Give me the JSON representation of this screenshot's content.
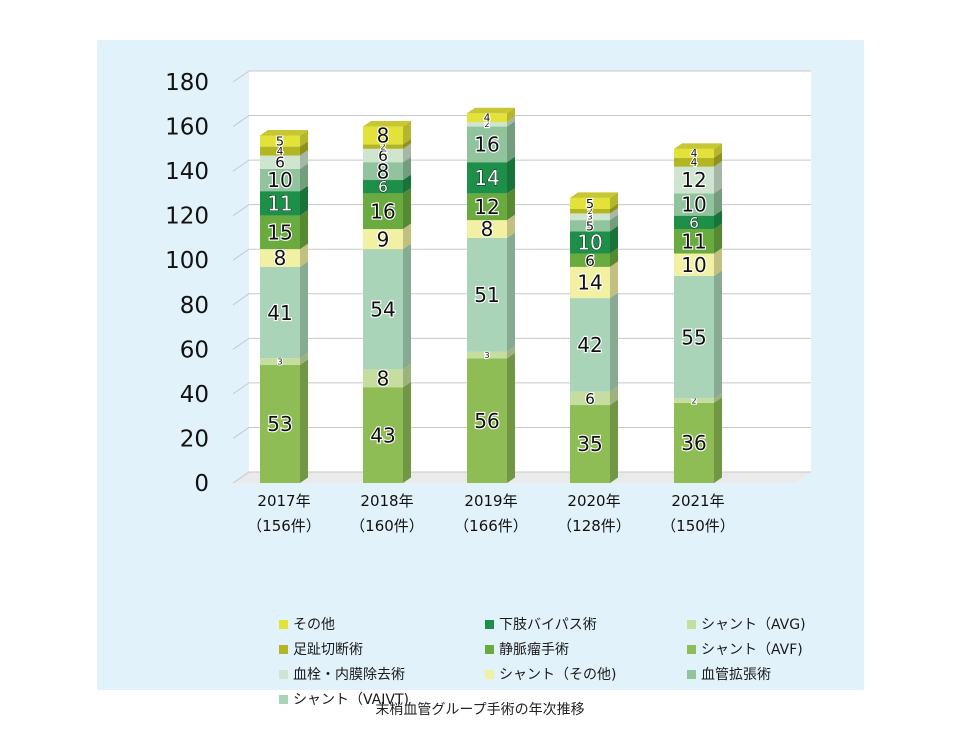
{
  "caption": "末梢血管グループ手術の年次推移",
  "chart_data": {
    "type": "bar",
    "stacked": true,
    "title": "",
    "xlabel": "",
    "ylabel": "",
    "ylim": [
      0,
      180
    ],
    "y_ticks": [
      0,
      20,
      40,
      60,
      80,
      100,
      120,
      140,
      160,
      180
    ],
    "grid": true,
    "legend_position": "bottom",
    "categories": [
      {
        "year": "2017年",
        "count": "（156件）"
      },
      {
        "year": "2018年",
        "count": "（160件）"
      },
      {
        "year": "2019年",
        "count": "（166件）"
      },
      {
        "year": "2020年",
        "count": "（128件）"
      },
      {
        "year": "2021年",
        "count": "（150件）"
      }
    ],
    "series": [
      {
        "name": "シャント（AVF)",
        "color": "#8fbd55",
        "values": [
          53,
          43,
          56,
          35,
          36
        ]
      },
      {
        "name": "シャント（AVG)",
        "color": "#c5dea0",
        "values": [
          3,
          8,
          3,
          6,
          2
        ]
      },
      {
        "name": "シャント（VAIVT)",
        "color": "#a9d4b8",
        "values": [
          41,
          54,
          51,
          42,
          55
        ]
      },
      {
        "name": "シャント（その他)",
        "color": "#f1f0a3",
        "values": [
          8,
          9,
          8,
          14,
          10
        ]
      },
      {
        "name": "静脈瘤手術",
        "color": "#6aab3f",
        "values": [
          15,
          16,
          12,
          6,
          11
        ]
      },
      {
        "name": "下肢バイパス術",
        "color": "#1e8f49",
        "values": [
          11,
          6,
          14,
          10,
          6
        ]
      },
      {
        "name": "血管拡張術",
        "color": "#91c49d",
        "values": [
          10,
          8,
          16,
          5,
          10
        ]
      },
      {
        "name": "血栓・内膜除去術",
        "color": "#cfe5d0",
        "values": [
          6,
          6,
          2,
          3,
          12
        ]
      },
      {
        "name": "足趾切断術",
        "color": "#b2b622",
        "values": [
          4,
          2,
          0,
          2,
          4
        ]
      },
      {
        "name": "その他",
        "color": "#e2e23a",
        "values": [
          5,
          8,
          4,
          5,
          4
        ]
      }
    ],
    "legend_order": [
      9,
      5,
      1,
      8,
      4,
      0,
      7,
      3,
      6,
      2
    ]
  }
}
